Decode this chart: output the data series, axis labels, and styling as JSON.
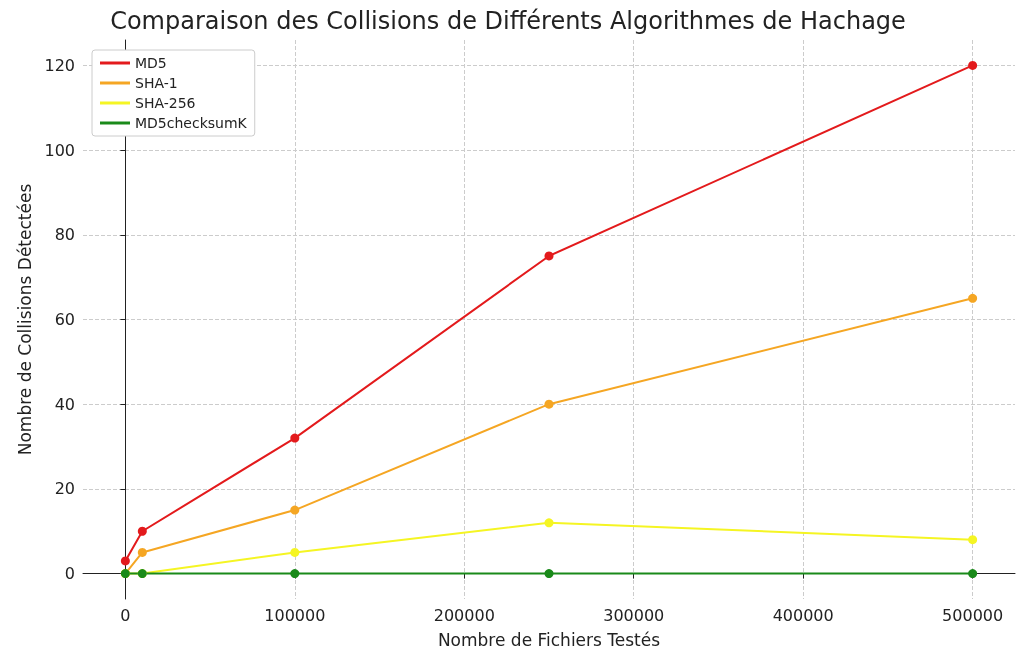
{
  "chart_data": {
    "type": "line",
    "title": "Comparaison des Collisions de Différents Algorithmes de Hachage",
    "xlabel": "Nombre de Fichiers Testés",
    "ylabel": "Nombre de Collisions Détectées",
    "x": [
      0,
      10000,
      100000,
      250000,
      500000
    ],
    "series": [
      {
        "name": "MD5",
        "color": "#e31a1c",
        "values": [
          3,
          10,
          32,
          75,
          120
        ]
      },
      {
        "name": "SHA-1",
        "color": "#f5a623",
        "values": [
          0,
          5,
          15,
          40,
          65
        ]
      },
      {
        "name": "SHA-256",
        "color": "#f5f523",
        "values": [
          0,
          0,
          5,
          12,
          8
        ]
      },
      {
        "name": "MD5checksumK",
        "color": "#1a8a1a",
        "values": [
          0,
          0,
          0,
          0,
          0
        ]
      }
    ],
    "xlim": [
      -25000,
      525000
    ],
    "xticks": [
      0,
      100000,
      200000,
      300000,
      400000,
      500000
    ],
    "ylim": [
      -6,
      126
    ],
    "yticks": [
      0,
      20,
      40,
      60,
      80,
      100,
      120
    ],
    "grid": true,
    "legend": "top left",
    "marker": "circle",
    "line_style": "solid"
  }
}
